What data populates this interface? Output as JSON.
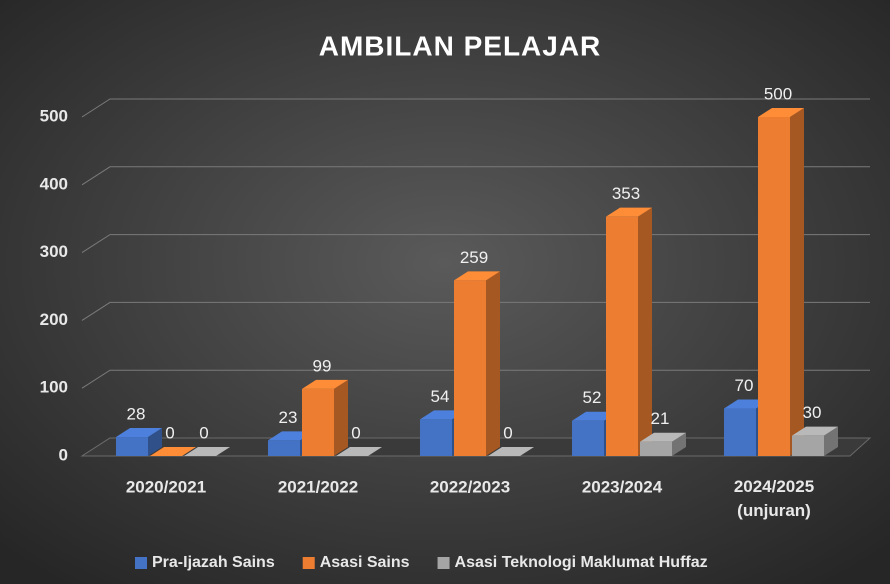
{
  "chart_data": {
    "type": "bar3d",
    "title": "AMBILAN PELAJAR",
    "categories": [
      "2020/2021",
      "2021/2022",
      "2022/2023",
      "2023/2024",
      "2024/2025 (unjuran)"
    ],
    "series": [
      {
        "name": "Pra-Ijazah Sains",
        "color": "#4472c4",
        "values": [
          28,
          23,
          54,
          52,
          70
        ]
      },
      {
        "name": "Asasi Sains",
        "color": "#ed7d31",
        "values": [
          0,
          99,
          259,
          353,
          500
        ]
      },
      {
        "name": "Asasi Teknologi Maklumat Huffaz",
        "color": "#a5a5a5",
        "values": [
          0,
          0,
          0,
          21,
          30
        ]
      }
    ],
    "ylim": [
      0,
      500
    ],
    "yticks": [
      0,
      100,
      200,
      300,
      400,
      500
    ],
    "grid": true,
    "legend": "bottom"
  }
}
